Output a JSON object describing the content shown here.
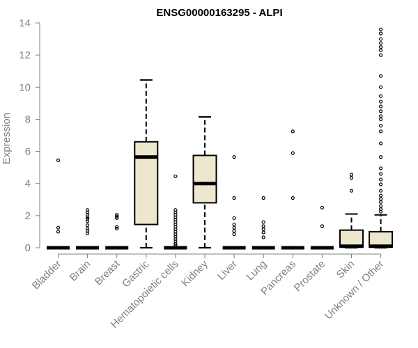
{
  "chart_data": {
    "type": "boxplot",
    "title": "ENSG00000163295 - ALPI",
    "xlabel": "",
    "ylabel": "Expression",
    "ylim": [
      0,
      14
    ],
    "yticks": [
      0,
      2,
      4,
      6,
      8,
      10,
      12,
      14
    ],
    "grid": false,
    "legend": "none",
    "box_fill": "#ede7cd",
    "box_stroke": "#000000",
    "axis_color": "#808080",
    "categories": [
      "Bladder",
      "Brain",
      "Breast",
      "Gastric",
      "Hematopoietic cells",
      "Kidney",
      "Liver",
      "Lung",
      "Pancreas",
      "Prostate",
      "Skin",
      "Unknown / Other"
    ],
    "boxes": [
      {
        "name": "Bladder",
        "min": 0,
        "q1": 0,
        "median": 0,
        "q3": 0,
        "max": 0,
        "outliers": [
          5.45,
          1.25,
          1.0
        ]
      },
      {
        "name": "Brain",
        "min": 0,
        "q1": 0,
        "median": 0,
        "q3": 0,
        "max": 0,
        "outliers": [
          2.35,
          2.2,
          2.05,
          1.9,
          1.8,
          1.65,
          1.4,
          1.2,
          1.05,
          0.9
        ]
      },
      {
        "name": "Breast",
        "min": 0,
        "q1": 0,
        "median": 0,
        "q3": 0,
        "max": 0,
        "outliers": [
          2.05,
          1.95,
          1.85,
          1.3,
          1.2
        ]
      },
      {
        "name": "Gastric",
        "min": 0,
        "q1": 1.45,
        "median": 5.65,
        "q3": 6.6,
        "max": 10.45,
        "outliers": []
      },
      {
        "name": "Hematopoietic cells",
        "min": 0,
        "q1": 0,
        "median": 0,
        "q3": 0,
        "max": 0,
        "outliers": [
          4.45,
          2.35,
          2.2,
          2.05,
          1.9,
          1.75,
          1.6,
          1.45,
          1.3,
          1.15,
          1.0,
          0.85,
          0.7,
          0.55,
          0.4,
          0.25,
          0.15
        ]
      },
      {
        "name": "Kidney",
        "min": 0,
        "q1": 2.8,
        "median": 4.0,
        "q3": 5.75,
        "max": 8.15,
        "outliers": []
      },
      {
        "name": "Liver",
        "min": 0,
        "q1": 0,
        "median": 0,
        "q3": 0,
        "max": 0,
        "outliers": [
          5.65,
          3.1,
          1.85,
          1.45,
          1.25,
          1.05,
          0.85
        ]
      },
      {
        "name": "Lung",
        "min": 0,
        "q1": 0,
        "median": 0,
        "q3": 0,
        "max": 0,
        "outliers": [
          3.1,
          1.6,
          1.35,
          1.15,
          0.95,
          0.65
        ]
      },
      {
        "name": "Pancreas",
        "min": 0,
        "q1": 0,
        "median": 0,
        "q3": 0,
        "max": 0,
        "outliers": [
          7.25,
          5.9,
          3.1
        ]
      },
      {
        "name": "Prostate",
        "min": 0,
        "q1": 0,
        "median": 0,
        "q3": 0,
        "max": 0,
        "outliers": [
          2.5,
          1.35
        ]
      },
      {
        "name": "Skin",
        "min": 0,
        "q1": 0.05,
        "median": 0.1,
        "q3": 1.1,
        "max": 2.1,
        "outliers": [
          4.55,
          4.35,
          3.55
        ]
      },
      {
        "name": "Unknown / Other",
        "min": 0,
        "q1": 0.05,
        "median": 0.1,
        "q3": 1.0,
        "max": 2.05,
        "outliers": [
          13.6,
          13.35,
          13.0,
          12.75,
          12.5,
          12.3,
          12.0,
          10.7,
          10.0,
          9.45,
          9.1,
          8.8,
          8.5,
          8.2,
          8.0,
          7.6,
          7.25,
          6.5,
          5.65,
          4.95,
          4.6,
          4.25,
          3.95,
          3.55,
          3.25,
          3.05,
          2.85,
          2.6,
          2.4,
          2.25
        ]
      }
    ]
  }
}
